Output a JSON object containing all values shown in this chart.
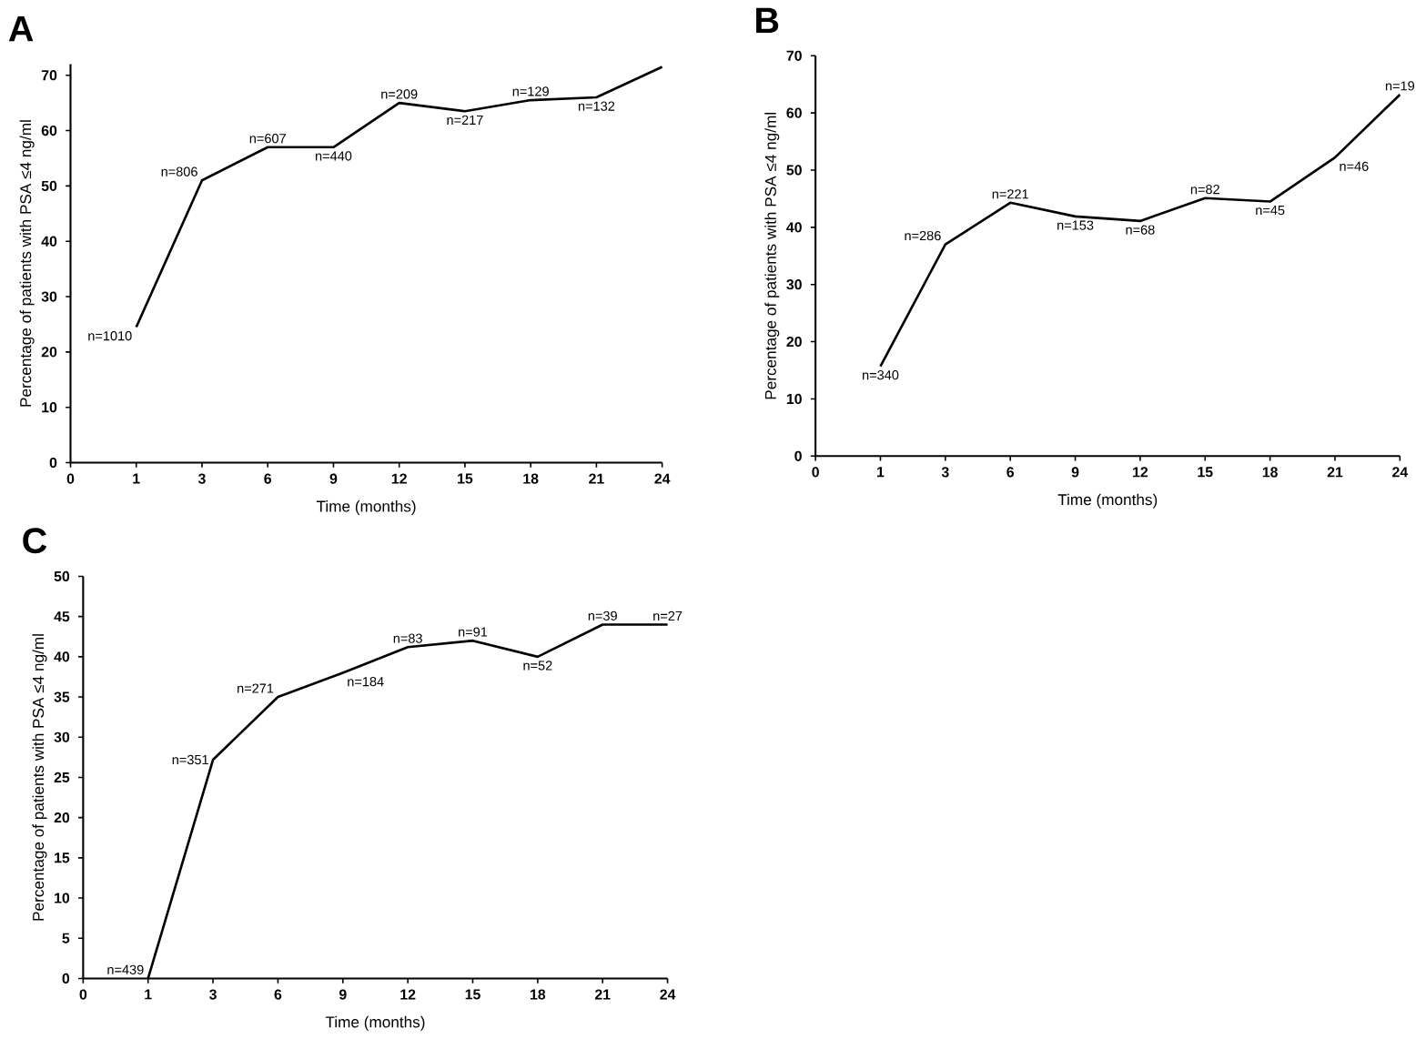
{
  "chart_data": [
    {
      "type": "line",
      "title": "A",
      "xlabel": "Time (months)",
      "ylabel": "Percentage of patients with PSA ≤4 ng/ml",
      "categories": [
        "0",
        "1",
        "3",
        "6",
        "9",
        "12",
        "15",
        "18",
        "21",
        "24"
      ],
      "values": [
        null,
        24.5,
        51,
        57,
        57,
        65,
        63.5,
        65.5,
        66,
        71.5
      ],
      "color": "#000000",
      "ylim": [
        0,
        72
      ],
      "yticks": [
        0,
        10,
        20,
        30,
        40,
        50,
        60,
        70
      ],
      "grid": false,
      "marker": "none",
      "line_style": "solid",
      "annotations": [
        {
          "text": "n=1010",
          "x": "1",
          "y": 24.5
        },
        {
          "text": "n=806",
          "x": "3",
          "y": 51
        },
        {
          "text": "n=607",
          "x": "6",
          "y": 57
        },
        {
          "text": "n=440",
          "x": "9",
          "y": 57
        },
        {
          "text": "n=209",
          "x": "12",
          "y": 65
        },
        {
          "text": "n=217",
          "x": "15",
          "y": 63.5
        },
        {
          "text": "n=129",
          "x": "18",
          "y": 65.5
        },
        {
          "text": "n=132",
          "x": "21",
          "y": 66
        }
      ]
    },
    {
      "type": "line",
      "title": "B",
      "xlabel": "Time (months)",
      "ylabel": "Percentage of patients with PSA ≤4 ng/ml",
      "categories": [
        "0",
        "1",
        "3",
        "6",
        "9",
        "12",
        "15",
        "18",
        "21",
        "24"
      ],
      "values": [
        null,
        15.7,
        37,
        44.3,
        41.9,
        41.1,
        45.1,
        44.5,
        52.2,
        63.2
      ],
      "color": "#000000",
      "ylim": [
        0,
        70
      ],
      "yticks": [
        0,
        10,
        20,
        30,
        40,
        50,
        60,
        70
      ],
      "grid": false,
      "marker": "none",
      "line_style": "solid",
      "annotations": [
        {
          "text": "n=340",
          "x": "1",
          "y": 15.7
        },
        {
          "text": "n=286",
          "x": "3",
          "y": 37
        },
        {
          "text": "n=221",
          "x": "6",
          "y": 44.3
        },
        {
          "text": "n=153",
          "x": "9",
          "y": 41.9
        },
        {
          "text": "n=68",
          "x": "12",
          "y": 41.1
        },
        {
          "text": "n=82",
          "x": "15",
          "y": 45.1
        },
        {
          "text": "n=45",
          "x": "18",
          "y": 44.5
        },
        {
          "text": "n=46",
          "x": "21",
          "y": 52.2
        },
        {
          "text": "n=19",
          "x": "24",
          "y": 63.2
        }
      ]
    },
    {
      "type": "line",
      "title": "C",
      "xlabel": "Time (months)",
      "ylabel": "Percentage of patients with PSA ≤4 ng/ml",
      "categories": [
        "0",
        "1",
        "3",
        "6",
        "9",
        "12",
        "15",
        "18",
        "21",
        "24"
      ],
      "values": [
        null,
        0,
        27.2,
        35,
        38,
        41.2,
        42,
        40,
        44,
        44
      ],
      "color": "#000000",
      "ylim": [
        0,
        50
      ],
      "yticks": [
        0,
        5,
        10,
        15,
        20,
        25,
        30,
        35,
        40,
        45,
        50
      ],
      "grid": false,
      "marker": "none",
      "line_style": "solid",
      "annotations": [
        {
          "text": "n=439",
          "x": "1",
          "y": 0
        },
        {
          "text": "n=351",
          "x": "3",
          "y": 27.2
        },
        {
          "text": "n=271",
          "x": "6",
          "y": 35
        },
        {
          "text": "n=184",
          "x": "9",
          "y": 38
        },
        {
          "text": "n=83",
          "x": "12",
          "y": 41.2
        },
        {
          "text": "n=91",
          "x": "15",
          "y": 42
        },
        {
          "text": "n=52",
          "x": "18",
          "y": 40
        },
        {
          "text": "n=39",
          "x": "21",
          "y": 44
        },
        {
          "text": "n=27",
          "x": "24",
          "y": 44
        }
      ]
    }
  ]
}
